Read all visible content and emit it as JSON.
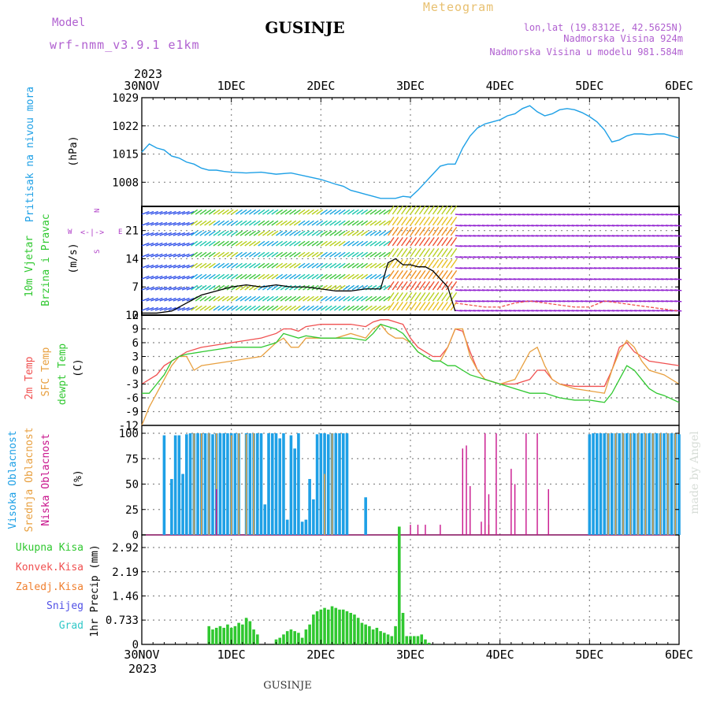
{
  "header": {
    "model_label": "Model",
    "model_name": "wrf-nmm_v3.9.1 e1km",
    "station": "GUSINJE",
    "meteogram_label": "Meteogram",
    "lonlat": "lon,lat (19.8312E, 42.5625N)",
    "altitude": "Nadmorska Visina 924m",
    "model_altitude": "Nadmorska Visina u modelu 981.584m",
    "year_top": "2023",
    "year_bottom": "2023",
    "footer_station": "GUSINJE",
    "watermark": "made by Angel"
  },
  "colors": {
    "pressure": "#1ea0e6",
    "temp2m": "#f05050",
    "sfc_temp": "#e8a040",
    "dewpoint": "#30c830",
    "high_cloud": "#1ea0e6",
    "mid_cloud": "#e8a040",
    "low_cloud": "#c8148c",
    "total_precip": "#30c830",
    "conv_precip": "#f05050",
    "freezing_precip": "#f08030",
    "snow": "#5050e6",
    "graupel": "#30c8c8",
    "wind_label": "#30c830",
    "wind_label2": "#30c830",
    "compass": "#b040c8"
  },
  "time_axis": {
    "top_labels": [
      "30NOV",
      "1DEC",
      "2DEC",
      "3DEC",
      "4DEC",
      "5DEC",
      "6DEC"
    ],
    "bottom_labels": [
      "30NOV",
      "1DEC",
      "2DEC",
      "3DEC",
      "4DEC",
      "5DEC",
      "6DEC"
    ],
    "start_hour": 0,
    "end_hour": 144
  },
  "chart_data": [
    {
      "type": "line",
      "panel": "pressure",
      "ylabel_left": "Pritisak na nivou mora",
      "unit": "(hPa)",
      "yticks": [
        "1008",
        "1015",
        "1022",
        "1029"
      ],
      "ylim": [
        1002,
        1029
      ],
      "series": [
        {
          "x": [
            0,
            2,
            4,
            6,
            8,
            10,
            12,
            14,
            16,
            18,
            20,
            22,
            24,
            28,
            32,
            36,
            40,
            44,
            48,
            52,
            54,
            56,
            58,
            60,
            62,
            64,
            66,
            68,
            70,
            72,
            74,
            76,
            78,
            80,
            82,
            84,
            86,
            88,
            90,
            92,
            94,
            96,
            98,
            100,
            102,
            104,
            106,
            108,
            110,
            112,
            114,
            116,
            118,
            120,
            122,
            124,
            126,
            128,
            130,
            132,
            134,
            136,
            138,
            140,
            142,
            144
          ],
          "values": [
            1015.5,
            1017.5,
            1016.5,
            1016,
            1014.5,
            1014,
            1013,
            1012.5,
            1011.5,
            1011,
            1011,
            1010.7,
            1010.5,
            1010.3,
            1010.5,
            1010,
            1010.3,
            1009.5,
            1008.7,
            1007.5,
            1007,
            1006,
            1005.5,
            1005,
            1004.5,
            1004,
            1004,
            1004,
            1004.5,
            1004.3,
            1006,
            1008,
            1010,
            1012,
            1012.5,
            1012.5,
            1016.5,
            1019.5,
            1021.5,
            1022.5,
            1023,
            1023.5,
            1024.5,
            1025,
            1026.3,
            1027,
            1025.5,
            1024.5,
            1025,
            1026,
            1026.3,
            1026,
            1025.3,
            1024.3,
            1023,
            1021,
            1018,
            1018.5,
            1019.5,
            1020,
            1020,
            1019.8,
            1020,
            1020,
            1019.5,
            1019
          ]
        }
      ]
    },
    {
      "type": "line",
      "panel": "wind",
      "ylabel_left": [
        "10m Vjetar",
        "Brzina i Pravac"
      ],
      "unit": "(m/s)",
      "compass": {
        "n": "N",
        "s": "S",
        "e": "E",
        "w": "W",
        "arrows": "<-|->"
      },
      "yticks": [
        "0",
        "7",
        "14",
        "21"
      ],
      "ylim": [
        0,
        27
      ],
      "series": [
        {
          "name": "mean wind",
          "x": [
            0,
            4,
            8,
            12,
            16,
            20,
            24,
            28,
            32,
            36,
            40,
            44,
            48,
            52,
            56,
            60,
            64,
            66,
            68,
            70,
            72,
            74,
            76,
            78,
            80,
            82,
            84
          ],
          "values": [
            0.5,
            0.5,
            1,
            3,
            5,
            6,
            7,
            7.5,
            7,
            7.5,
            7,
            7,
            6.5,
            6,
            6,
            6.5,
            6.5,
            13,
            14,
            12.5,
            12.5,
            12,
            12,
            11,
            9,
            7,
            1
          ]
        },
        {
          "name": "gust",
          "x": [
            84,
            88,
            92,
            96,
            100,
            104,
            108,
            112,
            116,
            120,
            124,
            128,
            132,
            136,
            140,
            144
          ],
          "values": [
            3,
            2.5,
            2,
            2,
            3,
            3.5,
            3,
            2.5,
            2,
            2,
            3.5,
            3,
            2.5,
            2,
            1.5,
            1
          ]
        }
      ]
    },
    {
      "type": "line",
      "panel": "temperature",
      "ylabel_left": [
        "2m Temp",
        "SFC Temp",
        "dewpt Temp"
      ],
      "unit": "(C)",
      "yticks": [
        "-12",
        "-9",
        "-6",
        "-3",
        "0",
        "3",
        "6",
        "9",
        "12"
      ],
      "ylim": [
        -12,
        12
      ],
      "series": [
        {
          "name": "2m Temp",
          "x": [
            0,
            2,
            4,
            6,
            8,
            10,
            12,
            16,
            20,
            24,
            28,
            32,
            36,
            38,
            40,
            42,
            44,
            48,
            52,
            56,
            60,
            62,
            64,
            66,
            68,
            70,
            72,
            74,
            76,
            78,
            80,
            82,
            84,
            86,
            88,
            90,
            92,
            96,
            100,
            104,
            106,
            108,
            110,
            112,
            116,
            120,
            124,
            126,
            128,
            130,
            132,
            134,
            136,
            140,
            144
          ],
          "values": [
            -3,
            -2,
            -1,
            1,
            2,
            3,
            4,
            5,
            5.5,
            6,
            6.5,
            7,
            8,
            9,
            9,
            8.5,
            9.5,
            10,
            10,
            10,
            9.5,
            10.5,
            11,
            11,
            10.5,
            10,
            7,
            5,
            4,
            3,
            3,
            5,
            9,
            8.5,
            4,
            0,
            -2,
            -3,
            -3,
            -2,
            0,
            0,
            -2,
            -3,
            -3.5,
            -3.5,
            -3.5,
            0,
            5,
            6,
            4,
            3,
            2,
            1.5,
            1
          ]
        },
        {
          "name": "SFC Temp",
          "x": [
            0,
            2,
            4,
            6,
            8,
            10,
            12,
            14,
            16,
            20,
            24,
            28,
            32,
            36,
            38,
            40,
            42,
            44,
            48,
            52,
            56,
            60,
            62,
            64,
            66,
            68,
            70,
            72,
            74,
            76,
            78,
            80,
            82,
            84,
            86,
            88,
            90,
            92,
            96,
            100,
            104,
            106,
            108,
            110,
            112,
            116,
            120,
            124,
            126,
            128,
            130,
            132,
            134,
            136,
            140,
            144
          ],
          "values": [
            -12,
            -8,
            -5,
            -2,
            1,
            3,
            3,
            0,
            1,
            1.5,
            2,
            2.5,
            3,
            6,
            7,
            5,
            5,
            7,
            7,
            7,
            8,
            7,
            9,
            10,
            8,
            7,
            7,
            6,
            4,
            3,
            2,
            2,
            5,
            9,
            9,
            3,
            0,
            -2,
            -3,
            -2,
            4,
            5,
            1,
            -2,
            -3,
            -4,
            -4.5,
            -5,
            0,
            4,
            6.5,
            5,
            2,
            0,
            -1,
            -3
          ]
        },
        {
          "name": "dewpt Temp",
          "x": [
            0,
            2,
            4,
            6,
            8,
            10,
            12,
            16,
            20,
            24,
            28,
            32,
            36,
            38,
            40,
            42,
            44,
            48,
            52,
            56,
            60,
            62,
            64,
            66,
            68,
            70,
            72,
            74,
            76,
            78,
            80,
            82,
            84,
            86,
            88,
            92,
            96,
            100,
            104,
            108,
            112,
            116,
            120,
            124,
            126,
            128,
            130,
            132,
            134,
            136,
            138,
            140,
            144
          ],
          "values": [
            -5,
            -5,
            -3,
            -1,
            2,
            3,
            3.5,
            4,
            4.5,
            5,
            5,
            5,
            6,
            8,
            7.5,
            7,
            7.5,
            7,
            7,
            7,
            6.5,
            8,
            10,
            9.5,
            9,
            8,
            6,
            4,
            3,
            2,
            2,
            1,
            1,
            0,
            -1,
            -2,
            -3,
            -4,
            -5,
            -5,
            -6,
            -6.5,
            -6.5,
            -7,
            -5,
            -2,
            1,
            0,
            -2,
            -4,
            -5,
            -5.5,
            -7
          ]
        }
      ]
    },
    {
      "type": "bar",
      "panel": "clouds",
      "ylabel_left": [
        "Visoka Oblacnost",
        "Srednja Oblacnost",
        "Niska Oblacnost"
      ],
      "unit": "(%)",
      "yticks": [
        "0",
        "25",
        "50",
        "75",
        "100"
      ],
      "ylim": [
        0,
        100
      ],
      "series": [
        {
          "name": "Visoka Oblacnost",
          "x": [
            6,
            8,
            9,
            10,
            11,
            12,
            13,
            14,
            15,
            16,
            17,
            18,
            19,
            20,
            21,
            22,
            23,
            24,
            25,
            26,
            28,
            29,
            30,
            31,
            32,
            33,
            34,
            35,
            36,
            37,
            38,
            39,
            40,
            41,
            42,
            43,
            44,
            45,
            46,
            47,
            48,
            49,
            50,
            51,
            52,
            53,
            54,
            55,
            60,
            120,
            121,
            122,
            123,
            124,
            125,
            126,
            127,
            128,
            129,
            130,
            131,
            132,
            133,
            134,
            135,
            136,
            137,
            138,
            139,
            140,
            141,
            142,
            143,
            144
          ],
          "values": [
            98,
            55,
            98,
            98,
            60,
            99,
            100,
            100,
            100,
            100,
            100,
            100,
            99,
            100,
            100,
            100,
            100,
            100,
            100,
            100,
            100,
            100,
            100,
            100,
            100,
            30,
            100,
            100,
            100,
            95,
            100,
            15,
            98,
            85,
            100,
            13,
            15,
            55,
            35,
            99,
            100,
            100,
            99,
            100,
            100,
            100,
            100,
            100,
            37,
            99,
            100,
            100,
            100,
            100,
            100,
            100,
            100,
            100,
            100,
            100,
            100,
            100,
            100,
            100,
            100,
            100,
            100,
            100,
            100,
            100,
            100,
            100,
            100,
            99
          ]
        },
        {
          "name": "Srednja Oblacnost",
          "x": [
            14,
            16,
            18,
            20,
            24,
            26,
            28,
            30,
            49,
            51,
            93,
            125,
            127,
            129,
            131,
            133,
            135,
            137,
            139,
            141,
            143
          ],
          "values": [
            100,
            100,
            100,
            100,
            98,
            100,
            99,
            100,
            60,
            100,
            10,
            100,
            100,
            100,
            100,
            100,
            100,
            100,
            100,
            100,
            100
          ]
        },
        {
          "name": "Niska Oblacnost",
          "x": [
            20,
            72,
            74,
            76,
            80,
            86,
            87,
            88,
            91,
            92,
            93,
            95,
            99,
            100,
            103,
            106,
            109,
            115
          ],
          "values": [
            45,
            10,
            10,
            10,
            10,
            85,
            88,
            48,
            13,
            100,
            40,
            100,
            65,
            50,
            100,
            100,
            45,
            0
          ]
        }
      ]
    },
    {
      "type": "bar",
      "panel": "precipitation",
      "legend": [
        "Ukupna Kisa",
        "Konvek.Kisa",
        "Zaledj.Kisa",
        "Snijeg",
        "Grad"
      ],
      "ylabel_left": "1hr Precip (mm)",
      "yticks": [
        "0",
        "0.733",
        "1.46",
        "2.19",
        "2.92"
      ],
      "ylim": [
        0,
        3.3
      ],
      "series": [
        {
          "name": "Ukupna Kisa",
          "x": [
            18,
            19,
            20,
            21,
            22,
            23,
            24,
            25,
            26,
            27,
            28,
            29,
            30,
            31,
            36,
            37,
            38,
            39,
            40,
            41,
            42,
            43,
            44,
            45,
            46,
            47,
            48,
            49,
            50,
            51,
            52,
            53,
            54,
            55,
            56,
            57,
            58,
            59,
            60,
            61,
            62,
            63,
            64,
            65,
            66,
            67,
            68,
            69,
            70,
            71,
            72,
            73,
            74,
            75,
            76,
            77,
            78,
            79,
            80,
            81,
            82
          ],
          "values": [
            0.55,
            0.45,
            0.5,
            0.55,
            0.5,
            0.6,
            0.5,
            0.55,
            0.65,
            0.6,
            0.8,
            0.7,
            0.45,
            0.3,
            0.15,
            0.2,
            0.3,
            0.4,
            0.45,
            0.4,
            0.35,
            0.2,
            0.45,
            0.6,
            0.9,
            1.0,
            1.05,
            1.1,
            1.05,
            1.15,
            1.1,
            1.05,
            1.05,
            1.0,
            0.95,
            0.9,
            0.8,
            0.65,
            0.6,
            0.55,
            0.45,
            0.5,
            0.4,
            0.35,
            0.3,
            0.25,
            0.55,
            3.55,
            0.95,
            0.25,
            0.25,
            0.25,
            0.25,
            0.3,
            0.15,
            0.05,
            0.0,
            0.0,
            0.0,
            0.0,
            0.0
          ]
        }
      ]
    }
  ]
}
